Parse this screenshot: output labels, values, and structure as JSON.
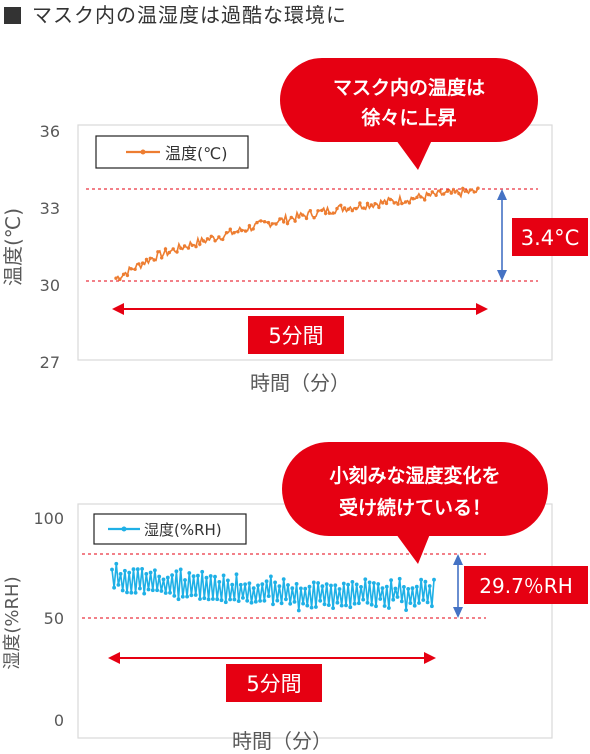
{
  "heading": "マスク内の温湿度は過酷な環境に",
  "chart_data": [
    {
      "type": "line",
      "ylabel": "温度(℃)",
      "xlabel": "時間（分）",
      "ylim": [
        27,
        36
      ],
      "yticks": [
        36,
        33,
        30,
        27
      ],
      "grid": false,
      "legend_position": "top-left",
      "series": [
        {
          "name": "温度(℃)",
          "color": "#ed7d31",
          "x_minutes": [
            0,
            0.5,
            1,
            1.5,
            2,
            2.5,
            3,
            3.5,
            4,
            4.5,
            5
          ],
          "values": [
            30.1,
            30.9,
            31.4,
            31.8,
            32.2,
            32.5,
            32.8,
            33.0,
            33.2,
            33.4,
            33.5
          ]
        }
      ],
      "reference_lines": [
        30.1,
        33.5
      ],
      "span_label": "5分間",
      "delta_label": "3.4°C",
      "callout": [
        "マスク内の温度は",
        "徐々に上昇"
      ]
    },
    {
      "type": "line",
      "ylabel": "湿度(%RH)",
      "xlabel": "時間（分）",
      "ylim": [
        0,
        100
      ],
      "yticks": [
        100,
        50,
        0
      ],
      "grid": false,
      "legend_position": "top-left",
      "series": [
        {
          "name": "湿度(%RH)",
          "color": "#1fb0e6",
          "x_minutes": [
            0,
            0.5,
            1,
            1.5,
            2,
            2.5,
            3,
            3.5,
            4,
            4.5,
            5
          ],
          "values": [
            70,
            69,
            67,
            66,
            64,
            63,
            62,
            62,
            63,
            63,
            62
          ],
          "swing": 7
        }
      ],
      "reference_lines": [
        50.8,
        80.5
      ],
      "span_label": "5分間",
      "delta_label": "29.7％RH",
      "callout": [
        "小刻みな湿度変化を",
        "受け続けている！"
      ]
    }
  ],
  "colors": {
    "callout_red": "#e60012",
    "guide_red": "#e60012",
    "arrow_blue": "#4472c4",
    "axis_text": "#595959"
  }
}
